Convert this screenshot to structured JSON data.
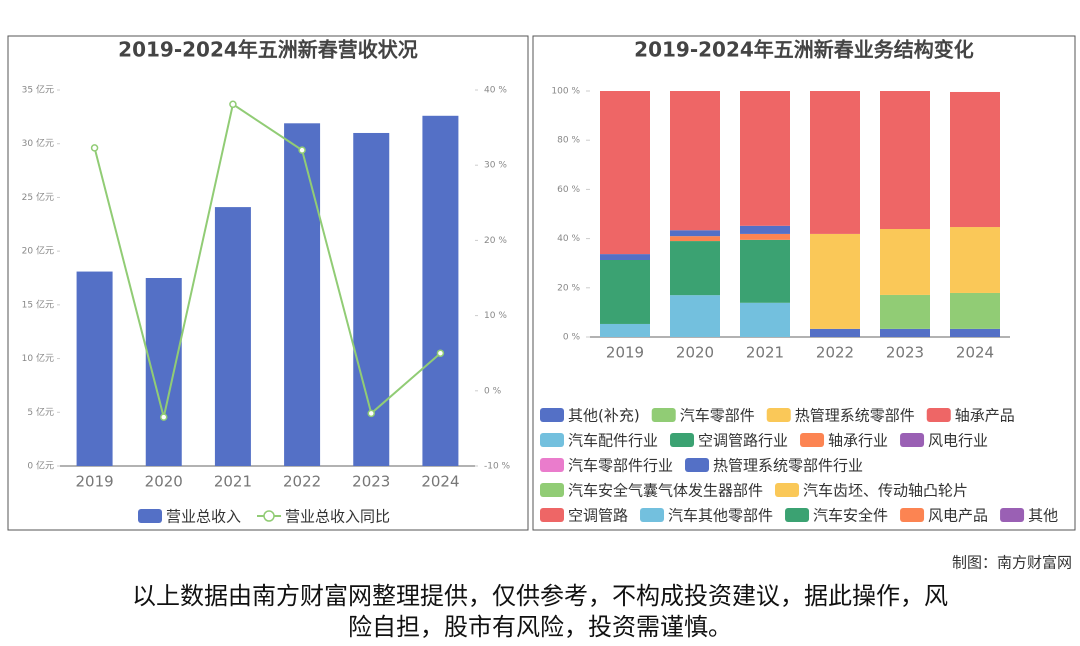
{
  "chart_data": [
    {
      "type": "bar",
      "title": "2019-2024年五洲新春营收状况",
      "categories": [
        "2019",
        "2020",
        "2021",
        "2022",
        "2023",
        "2024"
      ],
      "series": [
        {
          "name": "营业总收入",
          "kind": "bar",
          "color": "#5470c6",
          "values": [
            18.1,
            17.5,
            24.1,
            31.9,
            31.0,
            32.6
          ]
        },
        {
          "name": "营业总收入同比",
          "kind": "line",
          "axis": "y2",
          "color": "#91cc75",
          "values": [
            32.3,
            -3.5,
            38.1,
            32.0,
            -3.0,
            5.0
          ]
        }
      ],
      "ylim": [
        0,
        35
      ],
      "yticks": [
        {
          "value": 0,
          "label": "0 亿元"
        },
        {
          "value": 5,
          "label": "5 亿元"
        },
        {
          "value": 10,
          "label": "10 亿元"
        },
        {
          "value": 15,
          "label": "15 亿元"
        },
        {
          "value": 20,
          "label": "20 亿元"
        },
        {
          "value": 25,
          "label": "25 亿元"
        },
        {
          "value": 30,
          "label": "30 亿元"
        },
        {
          "value": 35,
          "label": "35 亿元"
        }
      ],
      "y2lim": [
        -10,
        40
      ],
      "y2ticks": [
        {
          "value": -10,
          "label": "-10 %"
        },
        {
          "value": 0,
          "label": "0 %"
        },
        {
          "value": 10,
          "label": "10 %"
        },
        {
          "value": 20,
          "label": "20 %"
        },
        {
          "value": 30,
          "label": "30 %"
        },
        {
          "value": 40,
          "label": "40 %"
        }
      ]
    },
    {
      "type": "stacked_bar",
      "title": "2019-2024年五洲新春业务结构变化",
      "categories": [
        "2019",
        "2020",
        "2021",
        "2022",
        "2023",
        "2024"
      ],
      "series": [
        {
          "name": "其他(补充)",
          "color": "#5470c6",
          "values": [
            null,
            null,
            null,
            3.3,
            3.3,
            3.3
          ]
        },
        {
          "name": "汽车零部件",
          "color": "#91cc75",
          "values": [
            null,
            null,
            null,
            null,
            13.8,
            14.6
          ]
        },
        {
          "name": "热管理系统零部件",
          "color": "#fac858",
          "values": [
            null,
            null,
            null,
            38.6,
            26.8,
            26.8
          ]
        },
        {
          "name": "轴承产品",
          "color": "#ee6666",
          "values": [
            null,
            null,
            null,
            58.1,
            56.1,
            54.9
          ]
        },
        {
          "name": "汽车配件行业",
          "color": "#73c0de",
          "values": [
            5.3,
            17,
            13.9,
            null,
            null,
            null
          ]
        },
        {
          "name": "空调管路行业",
          "color": "#3ba272",
          "values": [
            26,
            22,
            25.6,
            null,
            null,
            null
          ]
        },
        {
          "name": "轴承行业",
          "color": "#fc8452",
          "values": [
            null,
            2,
            2.4,
            null,
            null,
            null
          ]
        },
        {
          "name": "风电行业",
          "color": "#9a60b4",
          "values": [
            null,
            null,
            null,
            null,
            null,
            null
          ]
        },
        {
          "name": "汽车零部件行业",
          "color": "#ea7ccc",
          "values": [
            null,
            null,
            null,
            null,
            null,
            null
          ]
        },
        {
          "name": "热管理系统零部件行业",
          "color": "#5470c6",
          "values": [
            2.4,
            2.4,
            3.3,
            null,
            null,
            null
          ]
        },
        {
          "name": "汽车安全气囊气体发生器部件",
          "color": "#91cc75",
          "values": [
            null,
            null,
            null,
            null,
            null,
            null
          ]
        },
        {
          "name": "汽车齿坯、传动轴凸轮片",
          "color": "#fac858",
          "values": [
            null,
            null,
            null,
            null,
            null,
            null
          ]
        },
        {
          "name": "空调管路",
          "color": "#ee6666",
          "values": [
            66.3,
            56.6,
            54.8,
            null,
            null,
            null
          ]
        },
        {
          "name": "汽车其他零部件",
          "color": "#73c0de",
          "values": [
            null,
            null,
            null,
            null,
            null,
            null
          ]
        },
        {
          "name": "汽车安全件",
          "color": "#3ba272",
          "values": [
            null,
            null,
            null,
            null,
            null,
            null
          ]
        },
        {
          "name": "风电产品",
          "color": "#fc8452",
          "values": [
            null,
            null,
            null,
            null,
            null,
            null
          ]
        },
        {
          "name": "其他",
          "color": "#9a60b4",
          "values": [
            null,
            null,
            null,
            null,
            null,
            null
          ]
        }
      ],
      "ylim": [
        0,
        100
      ],
      "yticks": [
        {
          "value": 0,
          "label": "0 %"
        },
        {
          "value": 20,
          "label": "20 %"
        },
        {
          "value": 40,
          "label": "40 %"
        },
        {
          "value": 60,
          "label": "60 %"
        },
        {
          "value": 80,
          "label": "80 %"
        },
        {
          "value": 100,
          "label": "100 %"
        }
      ]
    }
  ],
  "credit": "制图：南方财富网",
  "disclaimer": [
    "以上数据由南方财富网整理提供，仅供参考，不构成投资建议，据此操作，风",
    "险自担，股市有风险，投资需谨慎。"
  ]
}
